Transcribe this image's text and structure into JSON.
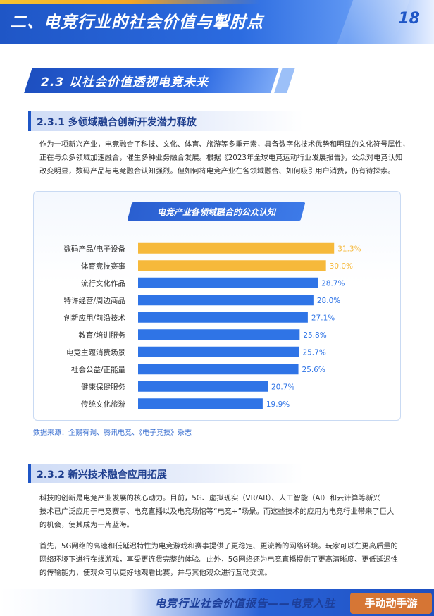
{
  "header": {
    "chapter_title": "二、电竞行业的社会价值与掣肘点",
    "page_number": "18"
  },
  "section": {
    "title": "2.3  以社会价值透视电竞未来"
  },
  "sub1": {
    "heading": "2.3.1 多领域融合创新开发潜力释放",
    "para_lines": [
      "作为一项新兴产业，电竞融合了科技、文化、体育、旅游等多重元素，具备数字化技术优势和明显的文化符号属性，",
      "正在与众多领域加速融合，催生多种业务融合发展。根据《2023年全球电竞运动行业发展报告》，公众对电竞认知",
      "改变明显，数码产品与电竞融合认知强烈。但如何将电竞产业在各领域融合、如何吸引用户消费，仍有待探索。"
    ]
  },
  "chart_data": {
    "type": "bar",
    "orientation": "horizontal",
    "title": "电竞产业各领域融合的公众认知",
    "categories": [
      "数码产品/电子设备",
      "体育竞技赛事",
      "流行文化作品",
      "特许经营/周边商品",
      "创新应用/前沿技术",
      "教育/培训服务",
      "电竞主题消费场景",
      "社会公益/正能量",
      "健康保健服务",
      "传统文化旅游"
    ],
    "values": [
      31.3,
      30.0,
      28.7,
      28.0,
      27.1,
      25.8,
      25.7,
      25.6,
      20.7,
      19.9
    ],
    "value_labels": [
      "31.3%",
      "30.0%",
      "28.7%",
      "28.0%",
      "27.1%",
      "25.8%",
      "25.7%",
      "25.6%",
      "20.7%",
      "19.9%"
    ],
    "highlight_count": 2,
    "xlim": [
      0,
      36
    ],
    "grid": false,
    "colors": {
      "highlight": "#f6b93b",
      "normal": "#2f74e6"
    }
  },
  "source_text": "数据来源：企鹅有调、腾讯电竞、《电子竞技》杂志",
  "sub2": {
    "heading": "2.3.2 新兴技术融合应用拓展",
    "para1_lines": [
      "科技的创新是电竞产业发展的核心动力。目前，5G、虚拟现实（VR/AR）、人工智能（AI）和云计算等新兴",
      "技术已广泛应用于电竞赛事、电竞直播以及电竞场馆等“电竞+”场景。而这些技术的应用为电竞行业带来了巨大",
      "的机会，使其成为一片蓝海。"
    ],
    "para2_lines": [
      "首先，5G网络的高速和低延迟特性为电竞游戏和赛事提供了更稳定、更流畅的网络环境。玩家可以在更高质量的",
      "网络环境下进行在线游戏，享受更连贯完整的体验。此外，5G网络还为电竞直播提供了更高清晰度、更低延迟性",
      "的传输能力，使观众可以更好地观看比赛，并与其他观众进行互动交流。"
    ]
  },
  "footer": {
    "text": "电竞行业社会价值报告——电竞入驻",
    "watermark": "手动动手游"
  }
}
